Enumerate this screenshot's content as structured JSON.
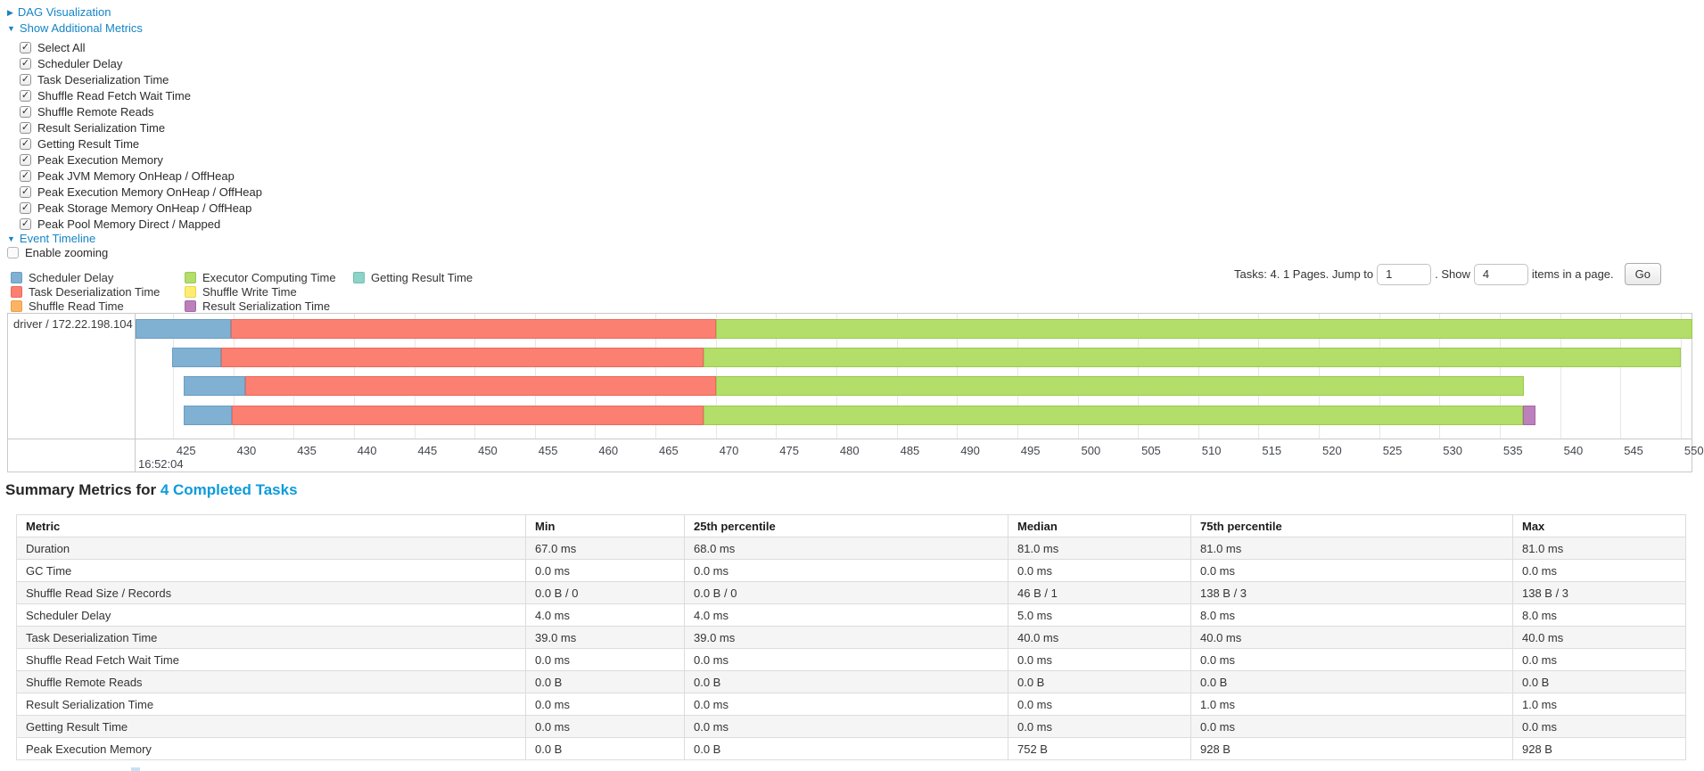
{
  "colors": {
    "link": "#1584c7",
    "heading_link": "#0c9bdb",
    "palette": {
      "scheduler_delay": {
        "label": "Scheduler Delay",
        "fill": "#80B1D3",
        "border": "#6a9dc3"
      },
      "task_deserialization": {
        "label": "Task Deserialization Time",
        "fill": "#FB8072",
        "border": "#e96a5d"
      },
      "shuffle_read": {
        "label": "Shuffle Read Time",
        "fill": "#FDB462",
        "border": "#ec9f47"
      },
      "executor_computing": {
        "label": "Executor Computing Time",
        "fill": "#B3DE69",
        "border": "#9cc950"
      },
      "shuffle_write": {
        "label": "Shuffle Write Time",
        "fill": "#FFED6F",
        "border": "#e9d550"
      },
      "result_serialization": {
        "label": "Result Serialization Time",
        "fill": "#BC80BD",
        "border": "#a369a4"
      },
      "getting_result": {
        "label": "Getting Result Time",
        "fill": "#8DD3C7",
        "border": "#72bfb2"
      }
    }
  },
  "nav": {
    "dag": {
      "label": "DAG Visualization",
      "state": "collapsed"
    },
    "metrics_toggle": {
      "label": "Show Additional Metrics",
      "state": "expanded"
    },
    "metrics_options": [
      {
        "label": "Select All",
        "checked": true
      },
      {
        "label": "Scheduler Delay",
        "checked": true
      },
      {
        "label": "Task Deserialization Time",
        "checked": true
      },
      {
        "label": "Shuffle Read Fetch Wait Time",
        "checked": true
      },
      {
        "label": "Shuffle Remote Reads",
        "checked": true
      },
      {
        "label": "Result Serialization Time",
        "checked": true
      },
      {
        "label": "Getting Result Time",
        "checked": true
      },
      {
        "label": "Peak Execution Memory",
        "checked": true
      },
      {
        "label": "Peak JVM Memory OnHeap / OffHeap",
        "checked": true
      },
      {
        "label": "Peak Execution Memory OnHeap / OffHeap",
        "checked": true
      },
      {
        "label": "Peak Storage Memory OnHeap / OffHeap",
        "checked": true
      },
      {
        "label": "Peak Pool Memory Direct / Mapped",
        "checked": true
      }
    ],
    "event_timeline": {
      "label": "Event Timeline",
      "state": "expanded"
    },
    "enable_zooming": {
      "label": "Enable zooming",
      "checked": false
    }
  },
  "legend": {
    "columns": [
      [
        "scheduler_delay",
        "task_deserialization",
        "shuffle_read"
      ],
      [
        "executor_computing",
        "shuffle_write",
        "result_serialization"
      ],
      [
        "getting_result"
      ]
    ]
  },
  "pager": {
    "prefix": "Tasks: 4. 1 Pages. Jump to",
    "jump_value": "1",
    "mid": ". Show",
    "show_value": "4",
    "suffix": "items in a page.",
    "go_label": "Go"
  },
  "chart_data": {
    "type": "timeline",
    "title": "Event Timeline",
    "row_label": "driver / 172.22.198.104",
    "x_unit": "ms offset within second 16:52:04",
    "window": {
      "start": 421.9,
      "end": 550.75
    },
    "ticks": [
      425,
      430,
      435,
      440,
      445,
      450,
      455,
      460,
      465,
      470,
      475,
      480,
      485,
      490,
      495,
      500,
      505,
      510,
      515,
      520,
      525,
      530,
      535,
      540,
      545,
      550
    ],
    "major_tick_label": "16:52:04",
    "tasks": [
      {
        "start": 421.9,
        "segments": [
          [
            "scheduler_delay",
            7.9
          ],
          [
            "task_deserialization",
            40.2
          ],
          [
            "executor_computing",
            81.0
          ]
        ]
      },
      {
        "start": 424.9,
        "segments": [
          [
            "scheduler_delay",
            4.1
          ],
          [
            "task_deserialization",
            40.0
          ],
          [
            "executor_computing",
            81.0
          ]
        ]
      },
      {
        "start": 425.9,
        "segments": [
          [
            "scheduler_delay",
            5.1
          ],
          [
            "task_deserialization",
            39.0
          ],
          [
            "executor_computing",
            67.0
          ]
        ]
      },
      {
        "start": 425.9,
        "segments": [
          [
            "scheduler_delay",
            4.0
          ],
          [
            "task_deserialization",
            39.1
          ],
          [
            "executor_computing",
            67.9
          ],
          [
            "result_serialization",
            1.1
          ]
        ]
      }
    ]
  },
  "summary": {
    "title_prefix": "Summary Metrics for ",
    "title_link": "4 Completed Tasks"
  },
  "table": {
    "headers": [
      "Metric",
      "Min",
      "25th percentile",
      "Median",
      "75th percentile",
      "Max"
    ],
    "rows": [
      [
        "Duration",
        "67.0 ms",
        "68.0 ms",
        "81.0 ms",
        "81.0 ms",
        "81.0 ms"
      ],
      [
        "GC Time",
        "0.0 ms",
        "0.0 ms",
        "0.0 ms",
        "0.0 ms",
        "0.0 ms"
      ],
      [
        "Shuffle Read Size / Records",
        "0.0 B / 0",
        "0.0 B / 0",
        "46 B / 1",
        "138 B / 3",
        "138 B / 3"
      ],
      [
        "Scheduler Delay",
        "4.0 ms",
        "4.0 ms",
        "5.0 ms",
        "8.0 ms",
        "8.0 ms"
      ],
      [
        "Task Deserialization Time",
        "39.0 ms",
        "39.0 ms",
        "40.0 ms",
        "40.0 ms",
        "40.0 ms"
      ],
      [
        "Shuffle Read Fetch Wait Time",
        "0.0 ms",
        "0.0 ms",
        "0.0 ms",
        "0.0 ms",
        "0.0 ms"
      ],
      [
        "Shuffle Remote Reads",
        "0.0 B",
        "0.0 B",
        "0.0 B",
        "0.0 B",
        "0.0 B"
      ],
      [
        "Result Serialization Time",
        "0.0 ms",
        "0.0 ms",
        "0.0 ms",
        "1.0 ms",
        "1.0 ms"
      ],
      [
        "Getting Result Time",
        "0.0 ms",
        "0.0 ms",
        "0.0 ms",
        "0.0 ms",
        "0.0 ms"
      ],
      [
        "Peak Execution Memory",
        "0.0 B",
        "0.0 B",
        "752 B",
        "928 B",
        "928 B"
      ]
    ]
  }
}
